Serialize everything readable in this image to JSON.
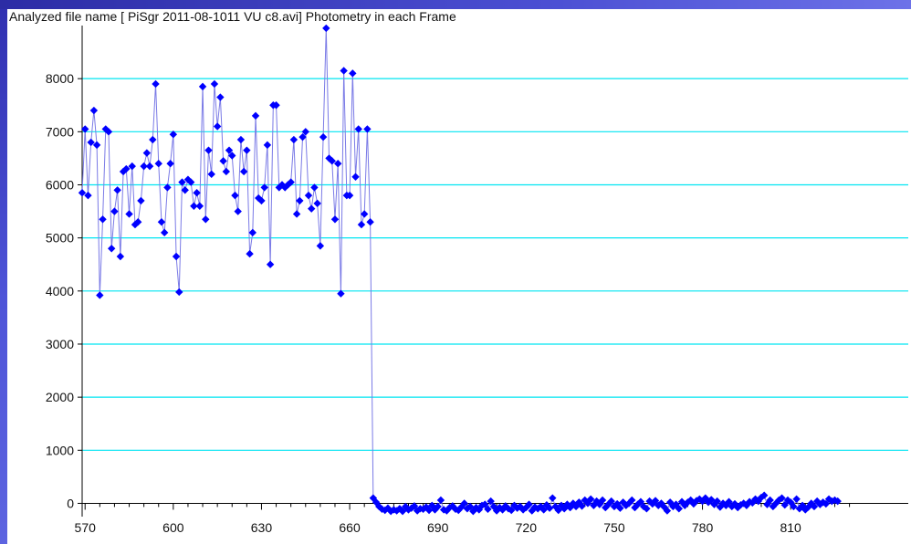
{
  "window": {
    "title": "Analyzed file name [ PiSgr 2011-08-1011 VU c8.avi]    Photometry in each Frame"
  },
  "colors": {
    "grid": "#00e5f2",
    "axis": "#000000",
    "marker": "#0000ff",
    "line": "#7a7ae6",
    "side_band": "#4b4fd3"
  },
  "chart_data": {
    "type": "scatter",
    "title": "",
    "xlabel": "",
    "ylabel": "",
    "xlim": [
      569,
      850
    ],
    "ylim": [
      -250,
      9000
    ],
    "grid": "horizontal",
    "legend": "none",
    "x_ticks": [
      570,
      600,
      630,
      660,
      690,
      720,
      750,
      780,
      810
    ],
    "y_ticks": [
      0,
      1000,
      2000,
      3000,
      4000,
      5000,
      6000,
      7000,
      8000
    ],
    "series": [
      {
        "values": [
          [
            569,
            5850
          ],
          [
            570,
            7050
          ],
          [
            571,
            5800
          ],
          [
            572,
            6800
          ],
          [
            573,
            7400
          ],
          [
            574,
            6750
          ],
          [
            575,
            3920
          ],
          [
            576,
            5350
          ],
          [
            577,
            7050
          ],
          [
            578,
            7000
          ],
          [
            579,
            4800
          ],
          [
            580,
            5500
          ],
          [
            581,
            5900
          ],
          [
            582,
            4650
          ],
          [
            583,
            6250
          ],
          [
            584,
            6300
          ],
          [
            585,
            5450
          ],
          [
            586,
            6350
          ],
          [
            587,
            5250
          ],
          [
            588,
            5300
          ],
          [
            589,
            5700
          ],
          [
            590,
            6350
          ],
          [
            591,
            6600
          ],
          [
            592,
            6350
          ],
          [
            593,
            6850
          ],
          [
            594,
            7900
          ],
          [
            595,
            6400
          ],
          [
            596,
            5300
          ],
          [
            597,
            5100
          ],
          [
            598,
            5950
          ],
          [
            599,
            6400
          ],
          [
            600,
            6950
          ],
          [
            601,
            4650
          ],
          [
            602,
            3980
          ],
          [
            603,
            6050
          ],
          [
            604,
            5900
          ],
          [
            605,
            6100
          ],
          [
            606,
            6050
          ],
          [
            607,
            5600
          ],
          [
            608,
            5850
          ],
          [
            609,
            5600
          ],
          [
            610,
            7850
          ],
          [
            611,
            5350
          ],
          [
            612,
            6650
          ],
          [
            613,
            6200
          ],
          [
            614,
            7900
          ],
          [
            615,
            7100
          ],
          [
            616,
            7650
          ],
          [
            617,
            6450
          ],
          [
            618,
            6250
          ],
          [
            619,
            6650
          ],
          [
            620,
            6550
          ],
          [
            621,
            5800
          ],
          [
            622,
            5500
          ],
          [
            623,
            6850
          ],
          [
            624,
            6250
          ],
          [
            625,
            6650
          ],
          [
            626,
            4700
          ],
          [
            627,
            5100
          ],
          [
            628,
            7300
          ],
          [
            629,
            5750
          ],
          [
            630,
            5700
          ],
          [
            631,
            5950
          ],
          [
            632,
            6750
          ],
          [
            633,
            4500
          ],
          [
            634,
            7500
          ],
          [
            635,
            7500
          ],
          [
            636,
            5950
          ],
          [
            637,
            6000
          ],
          [
            638,
            5950
          ],
          [
            639,
            6000
          ],
          [
            640,
            6050
          ],
          [
            641,
            6850
          ],
          [
            642,
            5450
          ],
          [
            643,
            5700
          ],
          [
            644,
            6900
          ],
          [
            645,
            7000
          ],
          [
            646,
            5800
          ],
          [
            647,
            5550
          ],
          [
            648,
            5950
          ],
          [
            649,
            5650
          ],
          [
            650,
            4850
          ],
          [
            651,
            6900
          ],
          [
            652,
            8950
          ],
          [
            653,
            6500
          ],
          [
            654,
            6450
          ],
          [
            655,
            5350
          ],
          [
            656,
            6400
          ],
          [
            657,
            3950
          ],
          [
            658,
            8150
          ],
          [
            659,
            5800
          ],
          [
            660,
            5800
          ],
          [
            661,
            8100
          ],
          [
            662,
            6150
          ],
          [
            663,
            7050
          ],
          [
            664,
            5250
          ],
          [
            665,
            5450
          ],
          [
            666,
            7050
          ],
          [
            667,
            5300
          ],
          [
            668,
            100
          ],
          [
            669,
            20
          ],
          [
            670,
            -60
          ],
          [
            671,
            -110
          ],
          [
            672,
            -130
          ],
          [
            673,
            -90
          ],
          [
            674,
            -150
          ],
          [
            675,
            -120
          ],
          [
            676,
            -140
          ],
          [
            677,
            -100
          ],
          [
            678,
            -150
          ],
          [
            679,
            -60
          ],
          [
            680,
            -120
          ],
          [
            681,
            -90
          ],
          [
            682,
            -50
          ],
          [
            683,
            -140
          ],
          [
            684,
            -100
          ],
          [
            685,
            -110
          ],
          [
            686,
            -70
          ],
          [
            687,
            -130
          ],
          [
            688,
            -40
          ],
          [
            689,
            -120
          ],
          [
            690,
            -60
          ],
          [
            691,
            60
          ],
          [
            692,
            -120
          ],
          [
            693,
            -140
          ],
          [
            694,
            -80
          ],
          [
            695,
            -50
          ],
          [
            696,
            -110
          ],
          [
            697,
            -130
          ],
          [
            698,
            -70
          ],
          [
            699,
            0
          ],
          [
            700,
            -100
          ],
          [
            701,
            -60
          ],
          [
            702,
            -150
          ],
          [
            703,
            -80
          ],
          [
            704,
            -120
          ],
          [
            705,
            -40
          ],
          [
            706,
            -20
          ],
          [
            707,
            -110
          ],
          [
            708,
            40
          ],
          [
            709,
            -60
          ],
          [
            710,
            -140
          ],
          [
            711,
            -80
          ],
          [
            712,
            -120
          ],
          [
            713,
            -50
          ],
          [
            714,
            -100
          ],
          [
            715,
            -130
          ],
          [
            716,
            -40
          ],
          [
            717,
            -90
          ],
          [
            718,
            -60
          ],
          [
            719,
            -120
          ],
          [
            720,
            -80
          ],
          [
            721,
            -20
          ],
          [
            722,
            -140
          ],
          [
            723,
            -70
          ],
          [
            724,
            -100
          ],
          [
            725,
            -60
          ],
          [
            726,
            -120
          ],
          [
            727,
            -30
          ],
          [
            728,
            -90
          ],
          [
            729,
            100
          ],
          [
            730,
            -60
          ],
          [
            731,
            -130
          ],
          [
            732,
            -40
          ],
          [
            733,
            -100
          ],
          [
            734,
            -20
          ],
          [
            735,
            -80
          ],
          [
            736,
            0
          ],
          [
            737,
            -60
          ],
          [
            738,
            20
          ],
          [
            739,
            -50
          ],
          [
            740,
            60
          ],
          [
            741,
            0
          ],
          [
            742,
            80
          ],
          [
            743,
            -40
          ],
          [
            744,
            40
          ],
          [
            745,
            -20
          ],
          [
            746,
            60
          ],
          [
            747,
            -80
          ],
          [
            748,
            -20
          ],
          [
            749,
            40
          ],
          [
            750,
            -60
          ],
          [
            751,
            -10
          ],
          [
            752,
            -90
          ],
          [
            753,
            20
          ],
          [
            754,
            -40
          ],
          [
            755,
            0
          ],
          [
            756,
            60
          ],
          [
            757,
            -80
          ],
          [
            758,
            -20
          ],
          [
            759,
            30
          ],
          [
            760,
            -60
          ],
          [
            761,
            -100
          ],
          [
            762,
            40
          ],
          [
            763,
            -10
          ],
          [
            764,
            50
          ],
          [
            765,
            -40
          ],
          [
            766,
            0
          ],
          [
            767,
            -70
          ],
          [
            768,
            -140
          ],
          [
            769,
            20
          ],
          [
            770,
            -60
          ],
          [
            771,
            -20
          ],
          [
            772,
            -100
          ],
          [
            773,
            30
          ],
          [
            774,
            -40
          ],
          [
            775,
            20
          ],
          [
            776,
            60
          ],
          [
            777,
            -10
          ],
          [
            778,
            50
          ],
          [
            779,
            80
          ],
          [
            780,
            40
          ],
          [
            781,
            100
          ],
          [
            782,
            20
          ],
          [
            783,
            70
          ],
          [
            784,
            -20
          ],
          [
            785,
            40
          ],
          [
            786,
            -70
          ],
          [
            787,
            0
          ],
          [
            788,
            -40
          ],
          [
            789,
            30
          ],
          [
            790,
            -60
          ],
          [
            791,
            -10
          ],
          [
            792,
            -80
          ],
          [
            793,
            -30
          ],
          [
            794,
            0
          ],
          [
            795,
            -40
          ],
          [
            796,
            30
          ],
          [
            797,
            10
          ],
          [
            798,
            80
          ],
          [
            799,
            40
          ],
          [
            800,
            110
          ],
          [
            801,
            150
          ],
          [
            802,
            -20
          ],
          [
            803,
            60
          ],
          [
            804,
            -60
          ],
          [
            805,
            0
          ],
          [
            806,
            60
          ],
          [
            807,
            100
          ],
          [
            808,
            -30
          ],
          [
            809,
            60
          ],
          [
            810,
            20
          ],
          [
            811,
            -60
          ],
          [
            812,
            80
          ],
          [
            813,
            -100
          ],
          [
            814,
            -40
          ],
          [
            815,
            -120
          ],
          [
            816,
            -70
          ],
          [
            817,
            0
          ],
          [
            818,
            -60
          ],
          [
            819,
            40
          ],
          [
            820,
            -20
          ],
          [
            821,
            20
          ],
          [
            822,
            -10
          ],
          [
            823,
            80
          ],
          [
            824,
            40
          ],
          [
            825,
            60
          ],
          [
            826,
            40
          ]
        ]
      }
    ]
  }
}
